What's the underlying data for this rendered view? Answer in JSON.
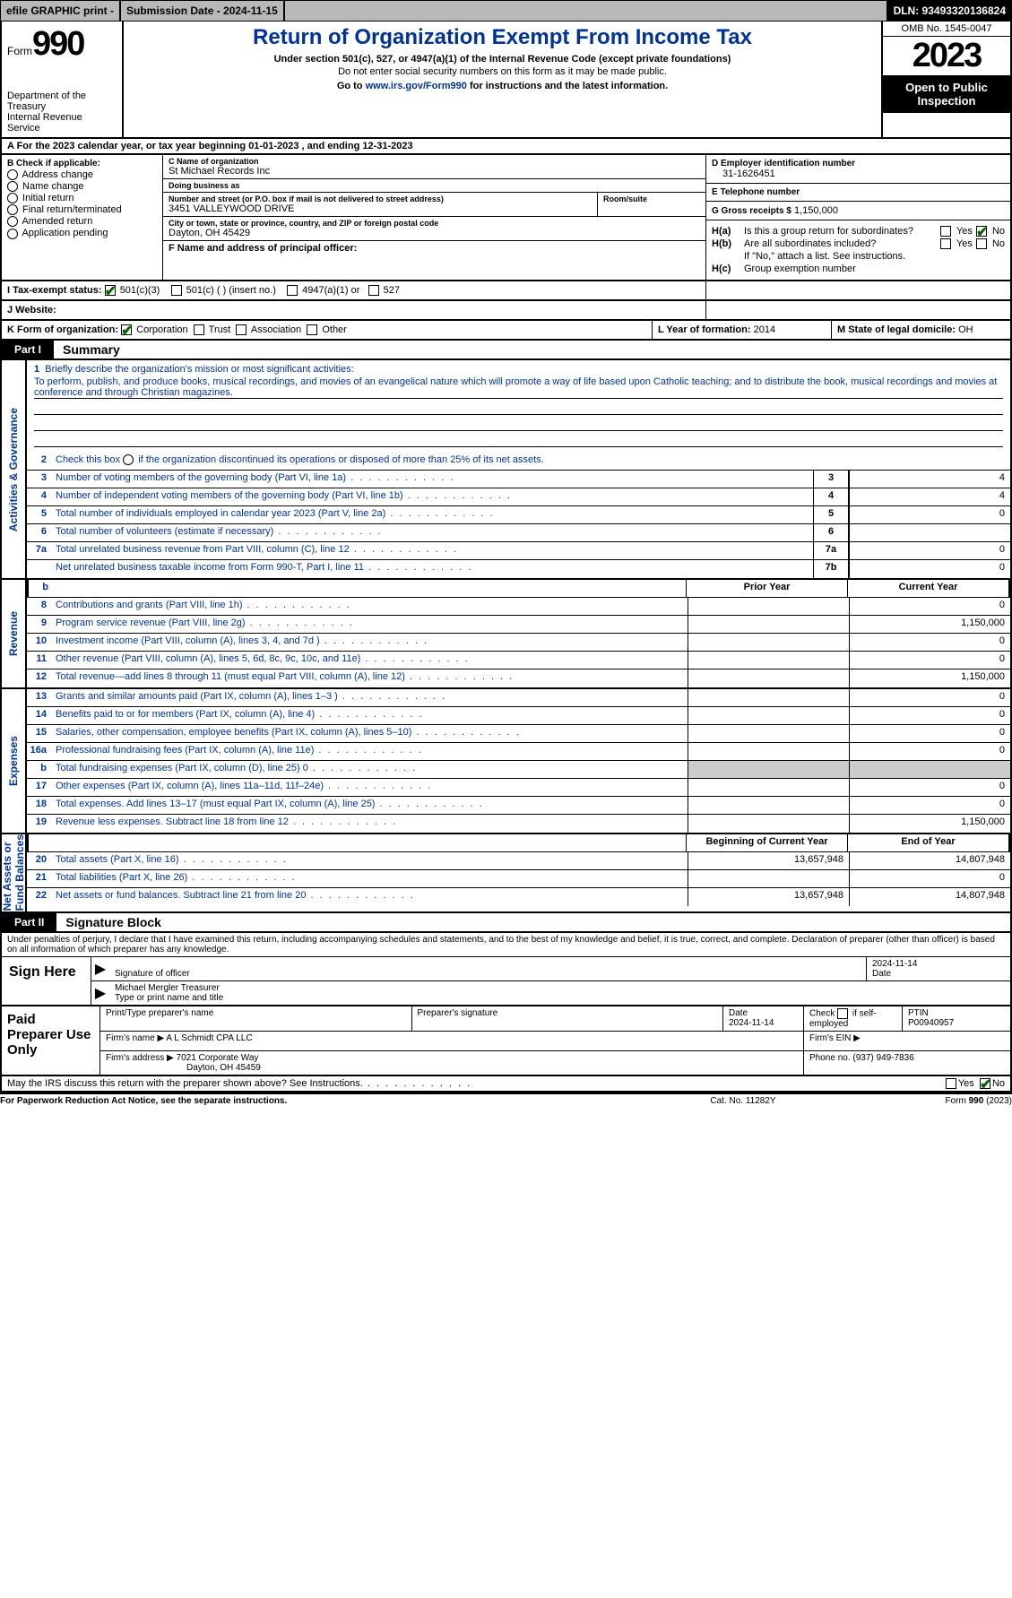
{
  "topbar": {
    "efile": "efile GRAPHIC print -  ",
    "submission": "Submission Date - 2024-11-15",
    "dln": "DLN: 93493320136824"
  },
  "header": {
    "form_word": "Form",
    "form_num": "990",
    "dept": "Department of the Treasury\nInternal Revenue Service",
    "title": "Return of Organization Exempt From Income Tax",
    "sub1": "Under section 501(c), 527, or 4947(a)(1) of the Internal Revenue Code (except private foundations)",
    "sub2": "Do not enter social security numbers on this form as it may be made public.",
    "sub3_pre": "Go to ",
    "sub3_link": "www.irs.gov/Form990",
    "sub3_post": " for instructions and the latest information.",
    "omb": "OMB No. 1545-0047",
    "year": "2023",
    "inspect": "Open to Public Inspection"
  },
  "rowA": {
    "text": "A  For the 2023 calendar year, or tax year beginning 01-01-2023    , and ending 12-31-2023"
  },
  "B": {
    "label": "B Check if applicable:",
    "opts": [
      "Address change",
      "Name change",
      "Initial return",
      "Final return/terminated",
      "Amended return",
      "Application pending"
    ]
  },
  "C": {
    "name_lab": "C Name of organization",
    "name": "St Michael Records Inc",
    "dba_lab": "Doing business as",
    "dba": "",
    "addr_lab": "Number and street (or P.O. box if mail is not delivered to street address)",
    "addr": "3451 VALLEYWOOD DRIVE",
    "room_lab": "Room/suite",
    "room": "",
    "city_lab": "City or town, state or province, country, and ZIP or foreign postal code",
    "city": "Dayton, OH  45429"
  },
  "D": {
    "lab": "D Employer identification number",
    "val": "31-1626451"
  },
  "E": {
    "lab": "E Telephone number",
    "val": ""
  },
  "G": {
    "lab": "G Gross receipts $",
    "val": "1,150,000"
  },
  "F": {
    "lab": "F   Name and address of principal officer:",
    "val": ""
  },
  "H": {
    "a_k": "H(a)",
    "a_t": "Is this a group return for subordinates?",
    "b_k": "H(b)",
    "b_t": "Are all subordinates included?",
    "b_note": "If \"No,\" attach a list. See instructions.",
    "c_k": "H(c)",
    "c_t": "Group exemption number ",
    "yes": "Yes",
    "no": "No"
  },
  "I": {
    "lab": "I   Tax-exempt status:",
    "o1": "501(c)(3)",
    "o2": "501(c) (  ) (insert no.)",
    "o3": "4947(a)(1) or",
    "o4": "527"
  },
  "J": {
    "lab": "J   Website:",
    "val": ""
  },
  "K": {
    "lab": "K Form of organization:",
    "o1": "Corporation",
    "o2": "Trust",
    "o3": "Association",
    "o4": "Other"
  },
  "L": {
    "lab": "L Year of formation:",
    "val": "2014"
  },
  "M": {
    "lab": "M State of legal domicile:",
    "val": "OH"
  },
  "part1": {
    "num": "Part I",
    "title": "Summary"
  },
  "summary": {
    "l1_lab": "Briefly describe the organization's mission or most significant activities:",
    "l1_text": "To perform, publish, and produce books, musical recordings, and movies of an evangelical nature which will promote a way of life based upon Catholic teaching; and to distribute the book, musical recordings and movies at conference and through Christian magazines.",
    "l2": "Check this box        if the organization discontinued its operations or disposed of more than 25% of its net assets.",
    "l3": "Number of voting members of the governing body (Part VI, line 1a)",
    "l4": "Number of independent voting members of the governing body (Part VI, line 1b)",
    "l5": "Total number of individuals employed in calendar year 2023 (Part V, line 2a)",
    "l6": "Total number of volunteers (estimate if necessary)",
    "l7a": "Total unrelated business revenue from Part VIII, column (C), line 12",
    "l7b": "Net unrelated business taxable income from Form 990-T, Part I, line 11",
    "v3": "4",
    "v4": "4",
    "v5": "0",
    "v6": "",
    "v7a": "0",
    "v7b": "0"
  },
  "rev_hdr": {
    "c1": "Prior Year",
    "c2": "Current Year"
  },
  "rev": [
    {
      "n": "8",
      "t": "Contributions and grants (Part VIII, line 1h)",
      "c1": "",
      "c2": "0"
    },
    {
      "n": "9",
      "t": "Program service revenue (Part VIII, line 2g)",
      "c1": "",
      "c2": "1,150,000"
    },
    {
      "n": "10",
      "t": "Investment income (Part VIII, column (A), lines 3, 4, and 7d )",
      "c1": "",
      "c2": "0"
    },
    {
      "n": "11",
      "t": "Other revenue (Part VIII, column (A), lines 5, 6d, 8c, 9c, 10c, and 11e)",
      "c1": "",
      "c2": "0"
    },
    {
      "n": "12",
      "t": "Total revenue—add lines 8 through 11 (must equal Part VIII, column (A), line 12)",
      "c1": "",
      "c2": "1,150,000"
    }
  ],
  "exp": [
    {
      "n": "13",
      "t": "Grants and similar amounts paid (Part IX, column (A), lines 1–3 )",
      "c1": "",
      "c2": "0"
    },
    {
      "n": "14",
      "t": "Benefits paid to or for members (Part IX, column (A), line 4)",
      "c1": "",
      "c2": "0"
    },
    {
      "n": "15",
      "t": "Salaries, other compensation, employee benefits (Part IX, column (A), lines 5–10)",
      "c1": "",
      "c2": "0"
    },
    {
      "n": "16a",
      "t": "Professional fundraising fees (Part IX, column (A), line 11e)",
      "c1": "",
      "c2": "0"
    },
    {
      "n": "b",
      "t": "Total fundraising expenses (Part IX, column (D), line 25) 0",
      "c1": "gray",
      "c2": "gray"
    },
    {
      "n": "17",
      "t": "Other expenses (Part IX, column (A), lines 11a–11d, 11f–24e)",
      "c1": "",
      "c2": "0"
    },
    {
      "n": "18",
      "t": "Total expenses. Add lines 13–17 (must equal Part IX, column (A), line 25)",
      "c1": "",
      "c2": "0"
    },
    {
      "n": "19",
      "t": "Revenue less expenses. Subtract line 18 from line 12",
      "c1": "",
      "c2": "1,150,000"
    }
  ],
  "na_hdr": {
    "c1": "Beginning of Current Year",
    "c2": "End of Year"
  },
  "na": [
    {
      "n": "20",
      "t": "Total assets (Part X, line 16)",
      "c1": "13,657,948",
      "c2": "14,807,948"
    },
    {
      "n": "21",
      "t": "Total liabilities (Part X, line 26)",
      "c1": "",
      "c2": "0"
    },
    {
      "n": "22",
      "t": "Net assets or fund balances. Subtract line 21 from line 20",
      "c1": "13,657,948",
      "c2": "14,807,948"
    }
  ],
  "vtabs": {
    "ag": "Activities & Governance",
    "rev": "Revenue",
    "exp": "Expenses",
    "na": "Net Assets or\nFund Balances"
  },
  "part2": {
    "num": "Part II",
    "title": "Signature Block"
  },
  "decl": "Under penalties of perjury, I declare that I have examined this return, including accompanying schedules and statements, and to the best of my knowledge and belief, it is true, correct, and complete. Declaration of preparer (other than officer) is based on all information of which preparer has any knowledge.",
  "sign": {
    "lab": "Sign Here",
    "sig_lab": "Signature of officer",
    "date": "2024-11-14",
    "date_lab": "Date",
    "name": "Michael Mergler  Treasurer",
    "name_lab": "Type or print name and title"
  },
  "prep": {
    "lab": "Paid Preparer Use Only",
    "r1": {
      "c1_lab": "Print/Type preparer's name",
      "c1": "",
      "c2_lab": "Preparer's signature",
      "c2": "",
      "c3_lab": "Date",
      "c3": "2024-11-14",
      "c4_lab": "Check         if self-employed",
      "c5_lab": "PTIN",
      "c5": "P00940957"
    },
    "r2": {
      "c1_lab": "Firm's name      ",
      "c1": "A L Schmidt CPA LLC",
      "c2_lab": "Firm's EIN "
    },
    "r3": {
      "c1_lab": "Firm's address ",
      "c1": "7021 Corporate Way",
      "c1b": "Dayton, OH  45459",
      "c2_lab": "Phone no.",
      "c2": "(937) 949-7836"
    }
  },
  "discuss": {
    "t": "May the IRS discuss this return with the preparer shown above? See Instructions.",
    "yes": "Yes",
    "no": "No"
  },
  "foot": {
    "f1": "For Paperwork Reduction Act Notice, see the separate instructions.",
    "f2": "Cat. No. 11282Y",
    "f3": "Form 990 (2023)"
  }
}
